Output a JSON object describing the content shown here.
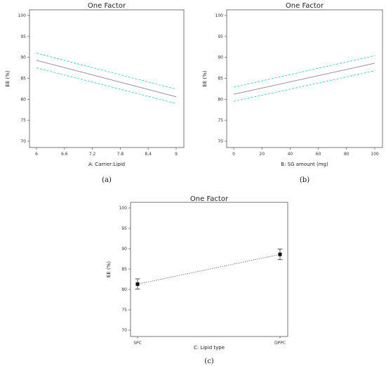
{
  "chart_data": [
    {
      "panel": "(a)",
      "type": "line",
      "title": "One Factor",
      "xlabel": "A: Carrier:Lipid",
      "ylabel": "EE (%)",
      "xlim": [
        6,
        9
      ],
      "ylim": [
        70,
        100
      ],
      "xticks": [
        "6",
        "6.6",
        "7.2",
        "7.8",
        "8.4",
        "9"
      ],
      "yticks": [
        "70",
        "75",
        "80",
        "85",
        "90",
        "95",
        "100"
      ],
      "grid": false,
      "x": [
        6,
        9
      ],
      "series": [
        {
          "values": [
            89.3,
            80.6
          ],
          "color": "#9b8ea4",
          "style": "solid"
        },
        {
          "values": [
            91.0,
            82.4
          ],
          "color": "#2bc4c4",
          "style": "dashed"
        },
        {
          "values": [
            87.5,
            79.0
          ],
          "color": "#2bc4c4",
          "style": "dashed"
        }
      ]
    },
    {
      "panel": "(b)",
      "type": "line",
      "title": "One Factor",
      "xlabel": "B: SG amount (mg)",
      "ylabel": "EE (%)",
      "xlim": [
        0,
        100
      ],
      "ylim": [
        70,
        100
      ],
      "xticks": [
        "0",
        "20",
        "40",
        "60",
        "80",
        "100"
      ],
      "yticks": [
        "70",
        "75",
        "80",
        "85",
        "90",
        "95",
        "100"
      ],
      "grid": false,
      "x": [
        0,
        100
      ],
      "series": [
        {
          "values": [
            81.2,
            88.6
          ],
          "color": "#9b8ea4",
          "style": "solid"
        },
        {
          "values": [
            82.9,
            90.4
          ],
          "color": "#2bc4c4",
          "style": "dashed"
        },
        {
          "values": [
            79.5,
            86.8
          ],
          "color": "#2bc4c4",
          "style": "dashed"
        }
      ]
    },
    {
      "panel": "(c)",
      "type": "scatter",
      "title": "One Factor",
      "xlabel": "C: Lipid type",
      "ylabel": "EE (%)",
      "categories": [
        "SPC",
        "DPPC"
      ],
      "ylim": [
        70,
        100
      ],
      "yticks": [
        "70",
        "75",
        "80",
        "85",
        "90",
        "95",
        "100"
      ],
      "grid": false,
      "values": [
        81.3,
        88.6
      ],
      "error_low": [
        80.1,
        87.3
      ],
      "error_high": [
        82.6,
        89.9
      ],
      "connector": "dotted"
    }
  ]
}
